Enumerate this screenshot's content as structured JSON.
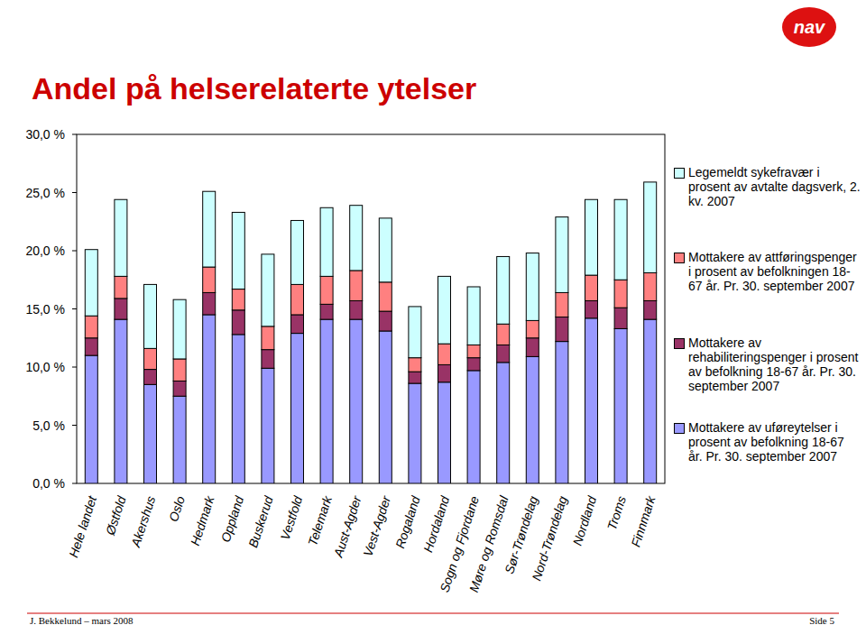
{
  "chart_data": {
    "type": "bar",
    "title": "Andel på helserelaterte ytelser",
    "stacked": true,
    "grid": false,
    "legend": "right",
    "categories": [
      "Hele landet",
      "Østfold",
      "Akershus",
      "Oslo",
      "Hedmark",
      "Oppland",
      "Buskerud",
      "Vestfold",
      "Telemark",
      "Aust-Agder",
      "Vest-Agder",
      "Rogaland",
      "Hordaland",
      "Sogn og Fjordane",
      "Møre og Romsdal",
      "Sør-Trøndelag",
      "Nord-Trøndelag",
      "Nordland",
      "Troms",
      "Finnmark"
    ],
    "series": [
      {
        "name": "Mottakere av uføreytelser i prosent av befolkning 18-67 år. Pr. 30. september 2007",
        "color": "#9999ff",
        "values": [
          11.0,
          14.1,
          8.5,
          7.5,
          14.5,
          12.8,
          9.9,
          12.9,
          14.1,
          14.1,
          13.1,
          8.6,
          8.7,
          9.7,
          10.4,
          10.9,
          12.2,
          14.2,
          13.3,
          14.1
        ]
      },
      {
        "name": "Mottakere av rehabiliteringspenger i prosent av befolkning 18-67 år. Pr. 30. september 2007",
        "color": "#993366",
        "values": [
          1.5,
          1.8,
          1.3,
          1.3,
          1.9,
          2.1,
          1.6,
          1.6,
          1.3,
          1.6,
          1.7,
          1.0,
          1.5,
          1.1,
          1.5,
          1.6,
          2.1,
          1.5,
          1.8,
          1.6
        ]
      },
      {
        "name": "Mottakere av attføringspenger i prosent av befolkningen 18-67 år. Pr. 30. september 2007",
        "color": "#ff8080",
        "values": [
          1.9,
          1.9,
          1.8,
          1.9,
          2.2,
          1.8,
          2.0,
          2.6,
          2.4,
          2.6,
          2.5,
          1.2,
          1.8,
          1.1,
          1.8,
          1.5,
          2.1,
          2.2,
          2.4,
          2.4
        ]
      },
      {
        "name": "Legemeldt sykefravær i prosent av avtalte dagsverk, 2. kv. 2007",
        "color": "#ccffff",
        "values": [
          5.7,
          6.6,
          5.5,
          5.1,
          6.5,
          6.6,
          6.2,
          5.5,
          5.9,
          5.6,
          5.5,
          4.4,
          5.8,
          5.0,
          5.8,
          5.8,
          6.5,
          6.5,
          6.9,
          7.8
        ]
      }
    ],
    "ylim": [
      0,
      30
    ],
    "yticks": [
      {
        "value": 0,
        "label": "0,0 %"
      },
      {
        "value": 5,
        "label": "5,0 %"
      },
      {
        "value": 10,
        "label": "10,0 %"
      },
      {
        "value": 15,
        "label": "15,0 %"
      },
      {
        "value": 20,
        "label": "20,0 %"
      },
      {
        "value": 25,
        "label": "25,0 %"
      },
      {
        "value": 30,
        "label": "30,0 %"
      }
    ],
    "annotations": [
      "J. Bekkelund – mars 2008",
      "Side 5",
      "nav"
    ]
  }
}
